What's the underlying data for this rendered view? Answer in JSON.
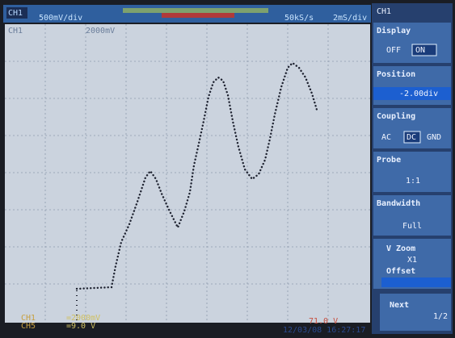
{
  "top_bar": {
    "channel": "CH1",
    "scale": "500mV/div",
    "sample_rate": "50kS/s",
    "timebase": "2mS/div"
  },
  "screen": {
    "channel": "CH1",
    "level": "2000mV"
  },
  "menu": {
    "channel": "CH1",
    "display": {
      "title": "Display",
      "off": "OFF",
      "on": "ON"
    },
    "position": {
      "title": "Position",
      "value": "-2.00div"
    },
    "coupling": {
      "title": "Coupling",
      "ac": "AC",
      "dc": "DC",
      "gnd": "GND"
    },
    "probe": {
      "title": "Probe",
      "value": "1:1"
    },
    "bandwidth": {
      "title": "Bandwidth",
      "value": "Full"
    },
    "zoom": {
      "v_zoom": "V Zoom",
      "v_zoom_value": "X1",
      "offset": "Offset"
    },
    "next": {
      "label": "Next",
      "page": "1/2"
    }
  },
  "status": {
    "ch1": "CH1",
    "ch5": "CH5",
    "ch1_value": "=2000mV",
    "ch5_value": "=9.0 V",
    "trigger": "71.0 V",
    "datetime": "12/03/08 16:27:17"
  }
}
